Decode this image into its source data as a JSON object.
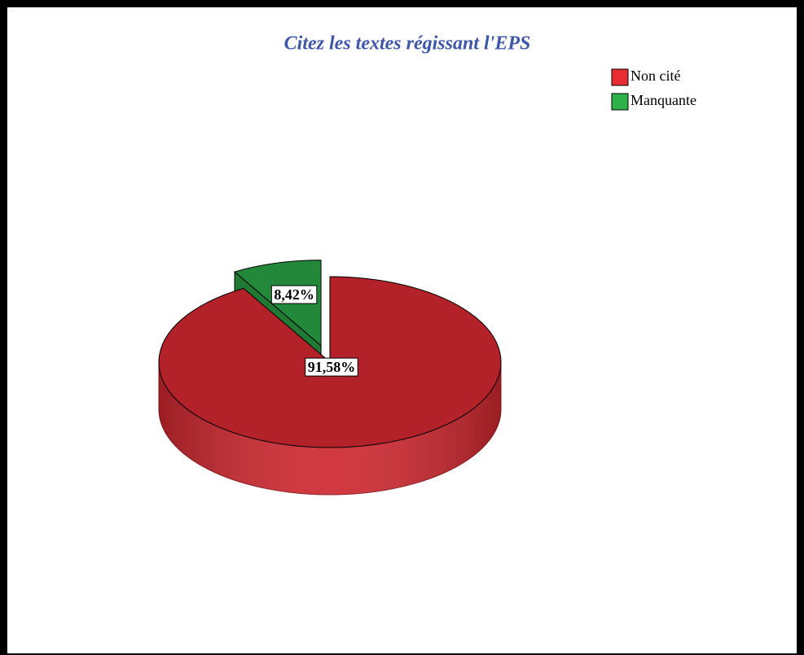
{
  "chart_data": {
    "type": "pie",
    "title": "Citez les textes régissant l'EPS",
    "categories": [
      "Non cité",
      "Manquante"
    ],
    "values": [
      91.58,
      8.42
    ],
    "value_labels": [
      "91,58%",
      "8,42%"
    ],
    "colors": [
      "#b22228",
      "#23883a"
    ],
    "legend": "top-right"
  }
}
